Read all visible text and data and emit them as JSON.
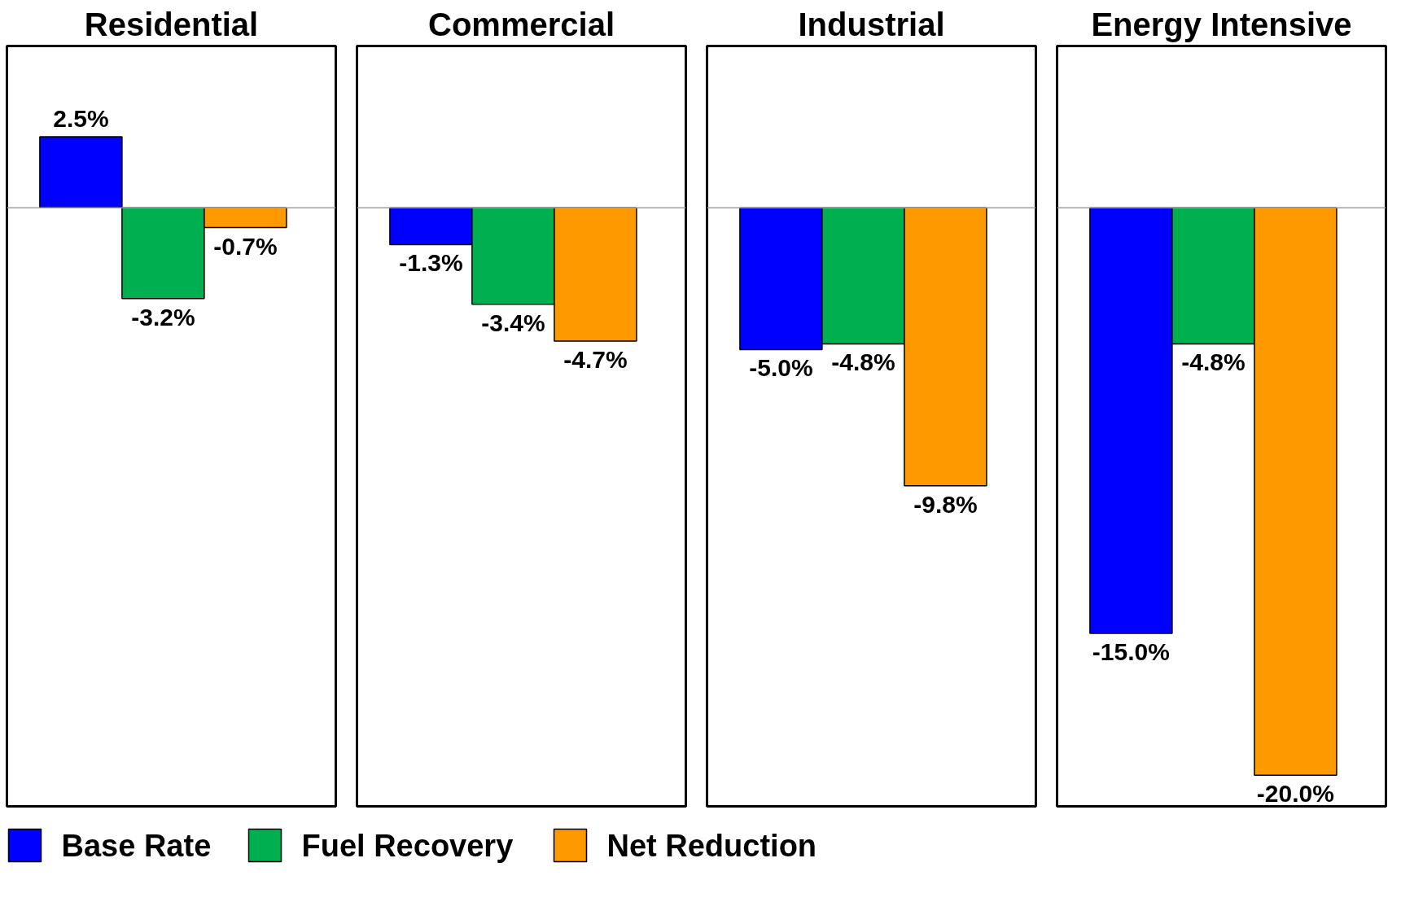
{
  "chart_data": [
    {
      "type": "bar",
      "title": "Residential",
      "categories": [
        null
      ],
      "ylim": [
        -21.1,
        5.7
      ],
      "tick_labels": false,
      "grid": false,
      "legend": "bottom",
      "series": [
        {
          "name": "Base Rate",
          "color": "#0000ff",
          "values": [
            2.5
          ],
          "value_labels": [
            "2.5%"
          ]
        },
        {
          "name": "Fuel Recovery",
          "color": "#00b050",
          "values": [
            -3.2
          ],
          "value_labels": [
            "-3.2%"
          ]
        },
        {
          "name": "Net Reduction",
          "color": "#ff9900",
          "values": [
            -0.7
          ],
          "value_labels": [
            "-0.7%"
          ]
        }
      ]
    },
    {
      "type": "bar",
      "title": "Commercial",
      "categories": [
        null
      ],
      "ylim": [
        -21.1,
        5.7
      ],
      "tick_labels": false,
      "grid": false,
      "series": [
        {
          "color": "#0000ff",
          "values": [
            -1.3
          ],
          "value_labels": [
            "-1.3%"
          ]
        },
        {
          "color": "#00b050",
          "values": [
            -3.4
          ],
          "value_labels": [
            "-3.4%"
          ]
        },
        {
          "color": "#ff9900",
          "values": [
            -4.7
          ],
          "value_labels": [
            "-4.7%"
          ]
        }
      ]
    },
    {
      "type": "bar",
      "title": "Industrial",
      "categories": [
        null
      ],
      "ylim": [
        -21.1,
        5.7
      ],
      "tick_labels": false,
      "grid": false,
      "series": [
        {
          "color": "#0000ff",
          "values": [
            -5.0
          ],
          "value_labels": [
            "-5.0%"
          ]
        },
        {
          "color": "#00b050",
          "values": [
            -4.8
          ],
          "value_labels": [
            "-4.8%"
          ]
        },
        {
          "color": "#ff9900",
          "values": [
            -9.8
          ],
          "value_labels": [
            "-9.8%"
          ]
        }
      ]
    },
    {
      "type": "bar",
      "title": "Energy Intensive",
      "categories": [
        null
      ],
      "ylim": [
        -21.1,
        5.7
      ],
      "tick_labels": false,
      "grid": false,
      "series": [
        {
          "color": "#0000ff",
          "values": [
            -15.0
          ],
          "value_labels": [
            "-15.0%"
          ]
        },
        {
          "color": "#00b050",
          "values": [
            -4.8
          ],
          "value_labels": [
            "-4.8%"
          ]
        },
        {
          "color": "#ff9900",
          "values": [
            -20.0
          ],
          "value_labels": [
            "-20.0%"
          ]
        }
      ]
    }
  ]
}
